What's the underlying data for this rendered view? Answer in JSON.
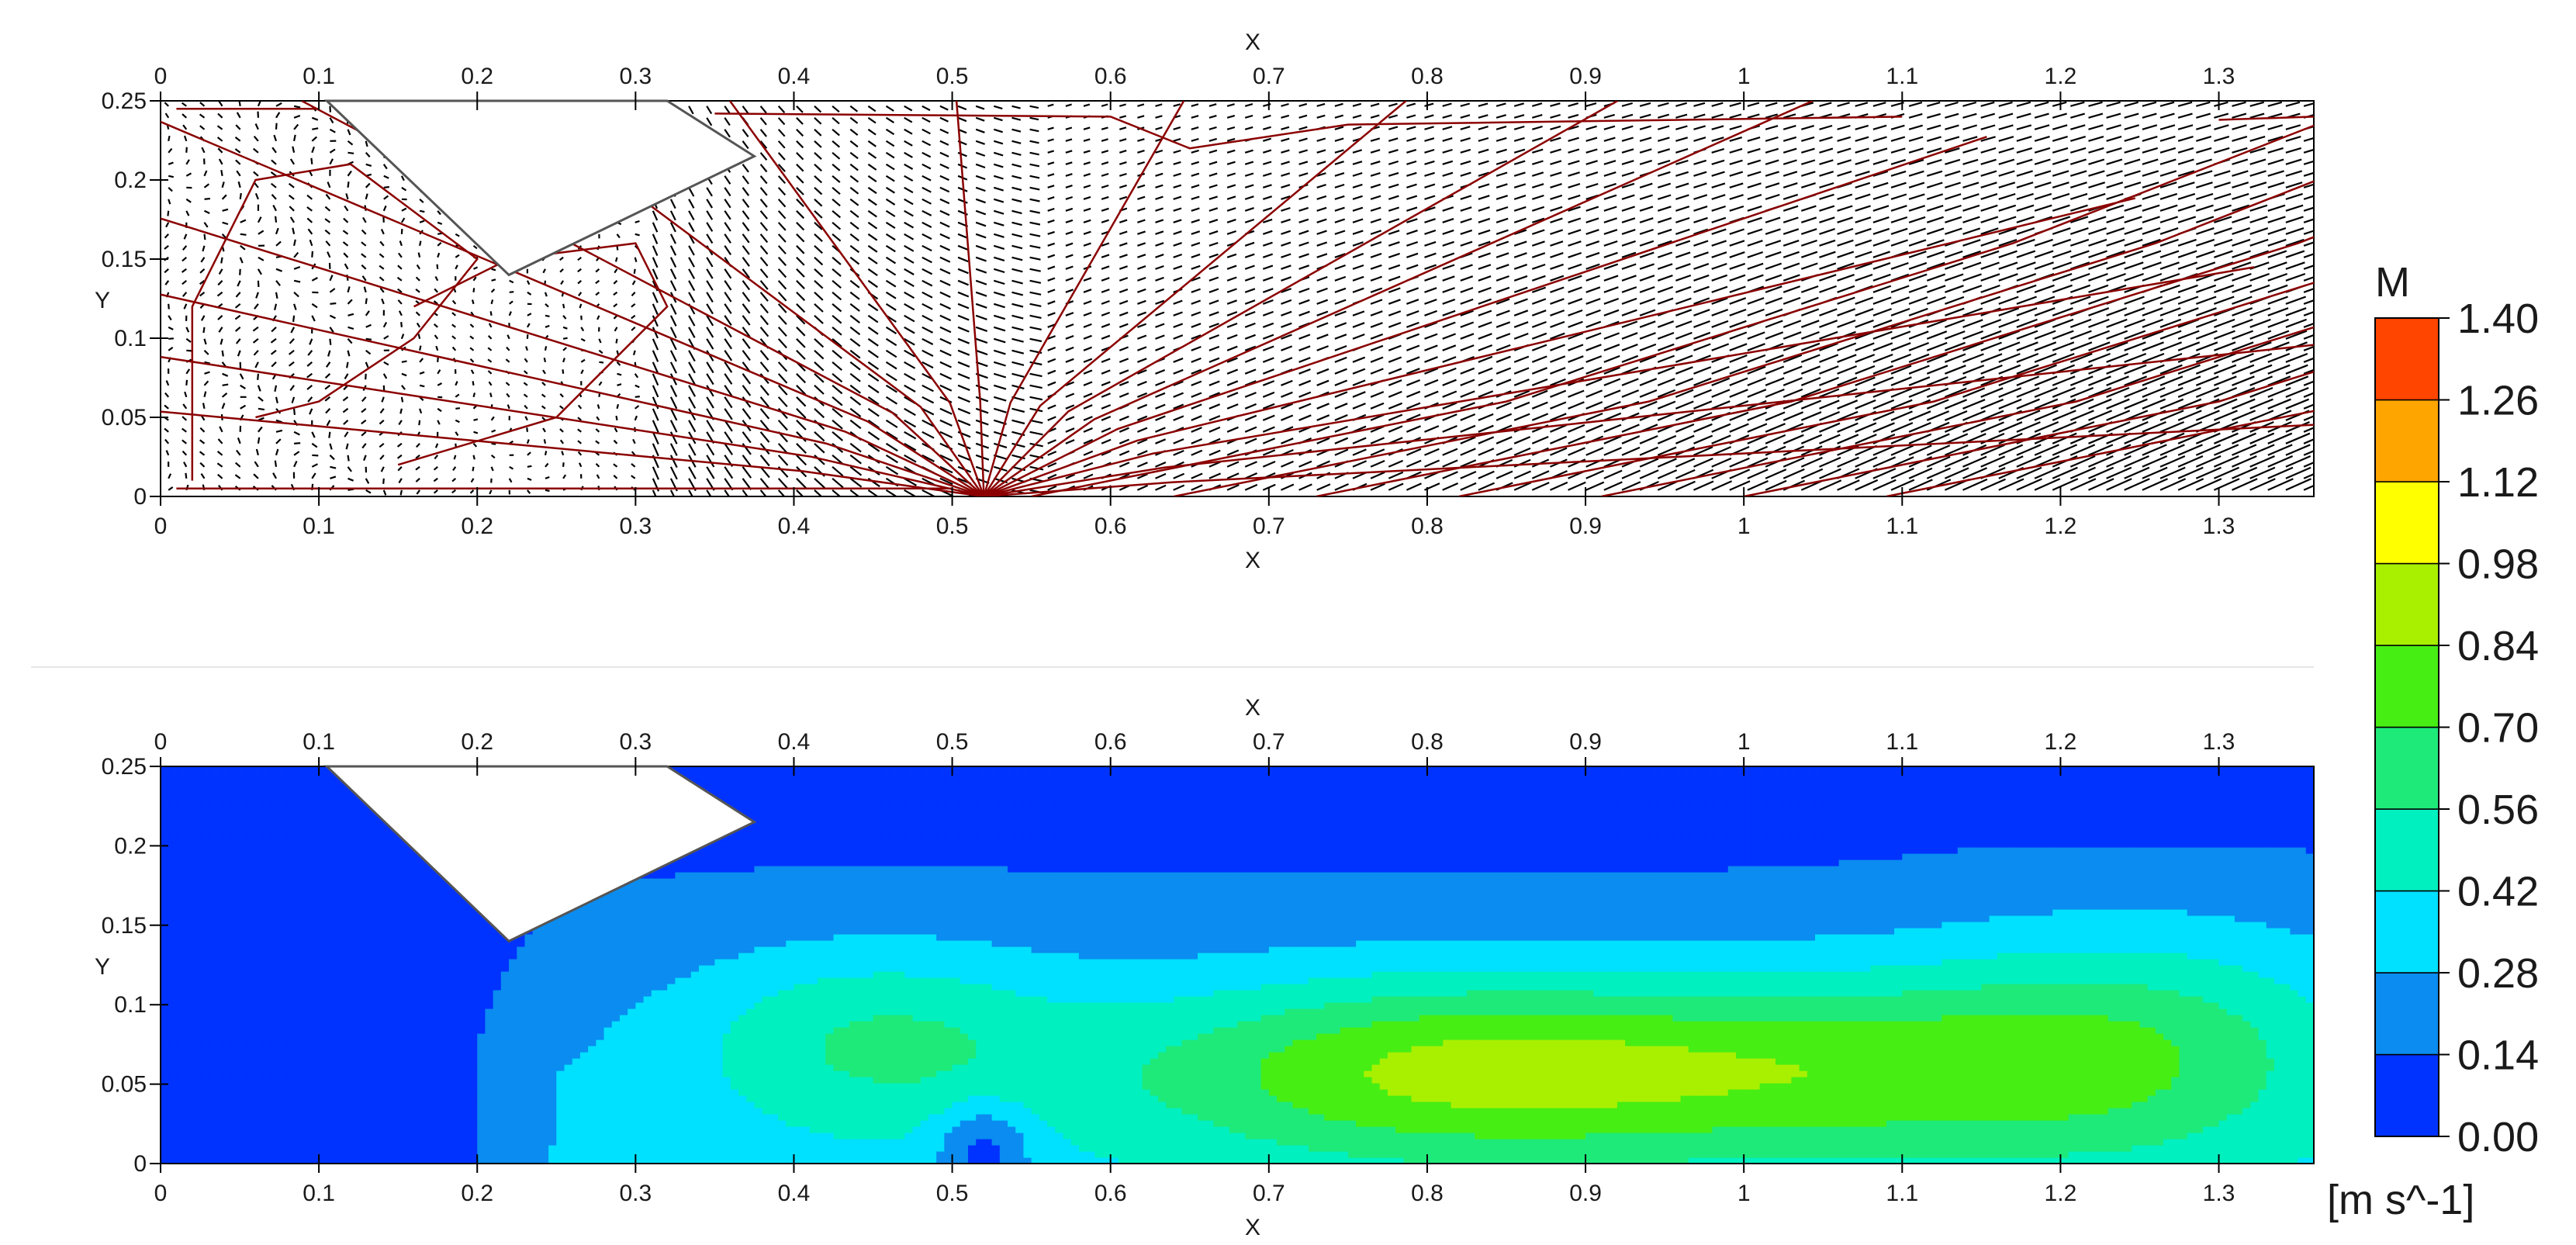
{
  "chart_data": [
    {
      "type": "vector-streamline",
      "xlabel": "X",
      "ylabel": "Y",
      "xlim": [
        0,
        1.36
      ],
      "ylim": [
        0,
        0.25
      ],
      "x_ticks": [
        "0",
        "0.1",
        "0.2",
        "0.3",
        "0.4",
        "0.5",
        "0.6",
        "0.7",
        "0.8",
        "0.9",
        "1",
        "1.1",
        "1.2",
        "1.3"
      ],
      "y_ticks": [
        "0",
        "0.05",
        "0.1",
        "0.15",
        "0.2",
        "0.25"
      ],
      "obstacle": [
        [
          0.105,
          0.25
        ],
        [
          0.22,
          0.14
        ],
        [
          0.375,
          0.215
        ],
        [
          0.32,
          0.25
        ]
      ],
      "vector_color": "#000000",
      "streamline_color": "#8b0000"
    },
    {
      "type": "heatmap",
      "xlabel": "X",
      "ylabel": "Y",
      "xlim": [
        0,
        1.36
      ],
      "ylim": [
        0,
        0.25
      ],
      "x_ticks": [
        "0",
        "0.1",
        "0.2",
        "0.3",
        "0.4",
        "0.5",
        "0.6",
        "0.7",
        "0.8",
        "0.9",
        "1",
        "1.1",
        "1.2",
        "1.3"
      ],
      "y_ticks": [
        "0",
        "0.05",
        "0.1",
        "0.15",
        "0.2",
        "0.25"
      ],
      "obstacle": [
        [
          0.105,
          0.25
        ],
        [
          0.22,
          0.14
        ],
        [
          0.375,
          0.215
        ],
        [
          0.32,
          0.25
        ]
      ],
      "colorbar": {
        "title": "M",
        "unit": "[m s^-1]",
        "levels": [
          "0.00",
          "0.14",
          "0.28",
          "0.42",
          "0.56",
          "0.70",
          "0.84",
          "0.98",
          "1.12",
          "1.26",
          "1.40"
        ],
        "colors": [
          "#0033ff",
          "#0a8cf0",
          "#00e0ff",
          "#00f0c0",
          "#1eea7a",
          "#46ee14",
          "#a8f000",
          "#ffff00",
          "#ffa500",
          "#ff4500"
        ]
      }
    }
  ]
}
